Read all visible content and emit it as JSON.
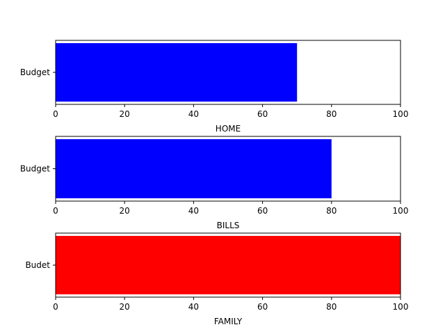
{
  "chart_data": [
    {
      "type": "bar",
      "orientation": "horizontal",
      "categories": [
        "Budget"
      ],
      "values": [
        70
      ],
      "xlabel": "HOME",
      "xlim": [
        0,
        100
      ],
      "xticks": [
        "0",
        "20",
        "40",
        "60",
        "80",
        "100"
      ],
      "bar_color": "#0000ff",
      "grid": false
    },
    {
      "type": "bar",
      "orientation": "horizontal",
      "categories": [
        "Budget"
      ],
      "values": [
        80
      ],
      "xlabel": "BILLS",
      "xlim": [
        0,
        100
      ],
      "xticks": [
        "0",
        "20",
        "40",
        "60",
        "80",
        "100"
      ],
      "bar_color": "#0000ff",
      "grid": false
    },
    {
      "type": "bar",
      "orientation": "horizontal",
      "categories": [
        "Budet"
      ],
      "values": [
        100
      ],
      "xlabel": "FAMILY",
      "xlim": [
        0,
        100
      ],
      "xticks": [
        "0",
        "20",
        "40",
        "60",
        "80",
        "100"
      ],
      "bar_color": "#ff0000",
      "grid": false
    }
  ]
}
